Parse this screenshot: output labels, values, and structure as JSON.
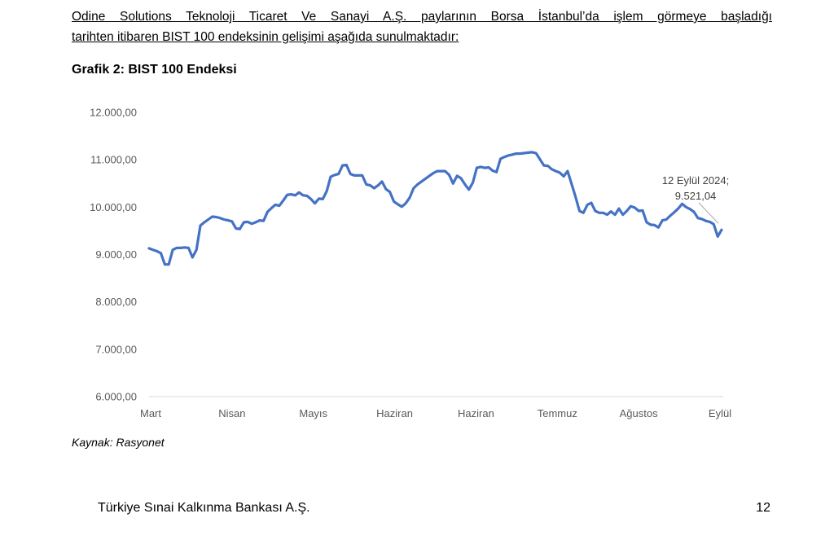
{
  "document": {
    "intro_line1": "Odine Solutions Teknoloji Ticaret Ve Sanayi A.Ş. paylarının Borsa İstanbul’da işlem görmeye başladığı",
    "intro_line2": "tarihten itibaren BIST 100 endeksinin gelişimi aşağıda sunulmaktadır:",
    "chart_heading": "Grafik 2: BIST 100 Endeksi",
    "source": "Kaynak: Rasyonet",
    "footer_left": "Türkiye Sınai Kalkınma Bankası A.Ş.",
    "page_number": "12"
  },
  "chart_data": {
    "type": "line",
    "title": "",
    "xlabel": "",
    "ylabel": "",
    "ylim": [
      6000,
      12000
    ],
    "grid": false,
    "line_color": "#4472C4",
    "y_ticks": [
      6000,
      7000,
      8000,
      9000,
      10000,
      11000,
      12000
    ],
    "y_tick_labels": [
      "6.000,00",
      "7.000,00",
      "8.000,00",
      "9.000,00",
      "10.000,00",
      "11.000,00",
      "12.000,00"
    ],
    "x_tick_labels": [
      "Mart",
      "Nisan",
      "Mayıs",
      "Haziran",
      "Haziran",
      "Temmuz",
      "Ağustos",
      "Eylül"
    ],
    "annotation": {
      "line1": "12 Eylül 2024;",
      "line2": "9.521,04"
    },
    "series": [
      {
        "values": [
          9130,
          9100,
          9070,
          9030,
          8790,
          8790,
          9100,
          9140,
          9140,
          9150,
          9140,
          8940,
          9100,
          9610,
          9680,
          9740,
          9800,
          9790,
          9770,
          9740,
          9720,
          9700,
          9550,
          9540,
          9680,
          9690,
          9650,
          9680,
          9720,
          9710,
          9900,
          9980,
          10050,
          10030,
          10140,
          10260,
          10270,
          10250,
          10310,
          10250,
          10240,
          10170,
          10080,
          10180,
          10170,
          10340,
          10640,
          10680,
          10700,
          10880,
          10890,
          10700,
          10670,
          10670,
          10670,
          10480,
          10460,
          10400,
          10460,
          10540,
          10380,
          10320,
          10120,
          10060,
          10010,
          10080,
          10200,
          10400,
          10480,
          10540,
          10600,
          10660,
          10720,
          10760,
          10760,
          10760,
          10680,
          10500,
          10660,
          10610,
          10480,
          10370,
          10520,
          10830,
          10850,
          10830,
          10840,
          10770,
          10740,
          11020,
          11060,
          11090,
          11110,
          11130,
          11130,
          11140,
          11150,
          11160,
          11140,
          11010,
          10880,
          10870,
          10800,
          10760,
          10730,
          10650,
          10760,
          10490,
          10220,
          9920,
          9880,
          10050,
          10090,
          9920,
          9880,
          9880,
          9840,
          9910,
          9840,
          9970,
          9840,
          9920,
          10020,
          9990,
          9920,
          9930,
          9680,
          9630,
          9620,
          9570,
          9720,
          9740,
          9820,
          9890,
          9970,
          10070,
          10000,
          9960,
          9900,
          9770,
          9750,
          9710,
          9690,
          9640,
          9380,
          9521.04
        ]
      }
    ]
  }
}
